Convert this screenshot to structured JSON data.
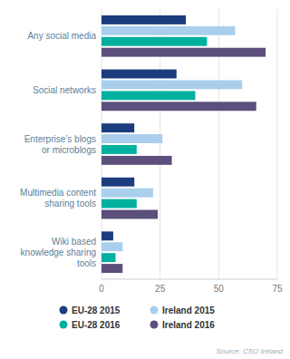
{
  "chart_data": {
    "type": "bar",
    "orientation": "horizontal",
    "categories": [
      "Any social media",
      "Social networks",
      "Enterprise’s blogs\nor microblogs",
      "Multimedia content\nsharing tools",
      "Wiki based\nknowledge sharing\ntools"
    ],
    "series": [
      {
        "name": "EU-28 2015",
        "color": "#1b3d7d",
        "values": [
          36,
          32,
          14,
          14,
          5
        ]
      },
      {
        "name": "Ireland 2015",
        "color": "#aacfed",
        "values": [
          57,
          60,
          26,
          22,
          9
        ]
      },
      {
        "name": "EU-28 2016",
        "color": "#00b09e",
        "values": [
          45,
          40,
          15,
          15,
          6
        ]
      },
      {
        "name": "Ireland 2016",
        "color": "#5c4f7c",
        "values": [
          70,
          66,
          30,
          24,
          9
        ]
      }
    ],
    "xlim": [
      0,
      75
    ],
    "xticks": [
      0,
      25,
      50,
      75
    ],
    "grid": true,
    "legend": "bottom",
    "annotations": [
      "Source: CSO Ireland"
    ]
  }
}
